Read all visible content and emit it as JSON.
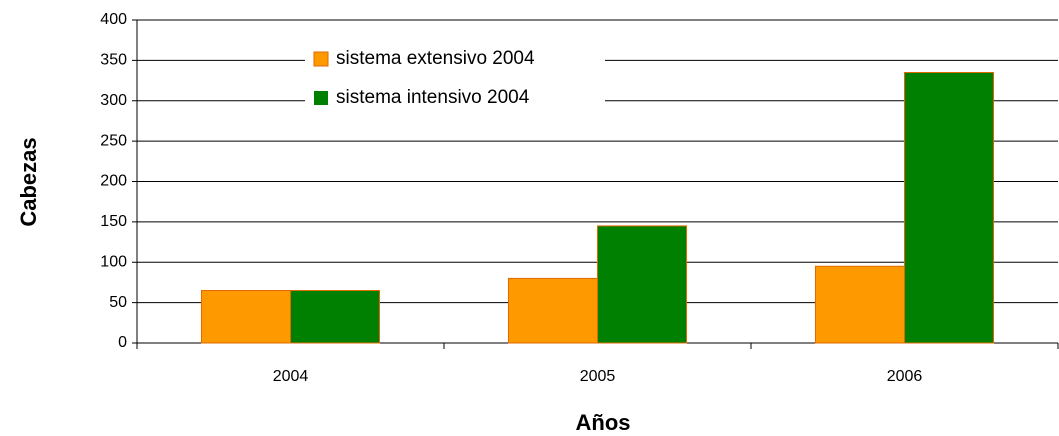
{
  "chart_data": {
    "type": "bar",
    "categories": [
      "2004",
      "2005",
      "2006"
    ],
    "series": [
      {
        "name": "sistema extensivo 2004",
        "color": "#ff9900",
        "values": [
          65,
          80,
          95
        ]
      },
      {
        "name": "sistema intensivo 2004",
        "color": "#008000",
        "values": [
          65,
          145,
          335
        ]
      }
    ],
    "y_label": "Cabezas",
    "x_label": "Años",
    "ylim": [
      0,
      400
    ],
    "yticks": [
      0,
      50,
      100,
      150,
      200,
      250,
      300,
      350,
      400
    ],
    "grid": true
  }
}
